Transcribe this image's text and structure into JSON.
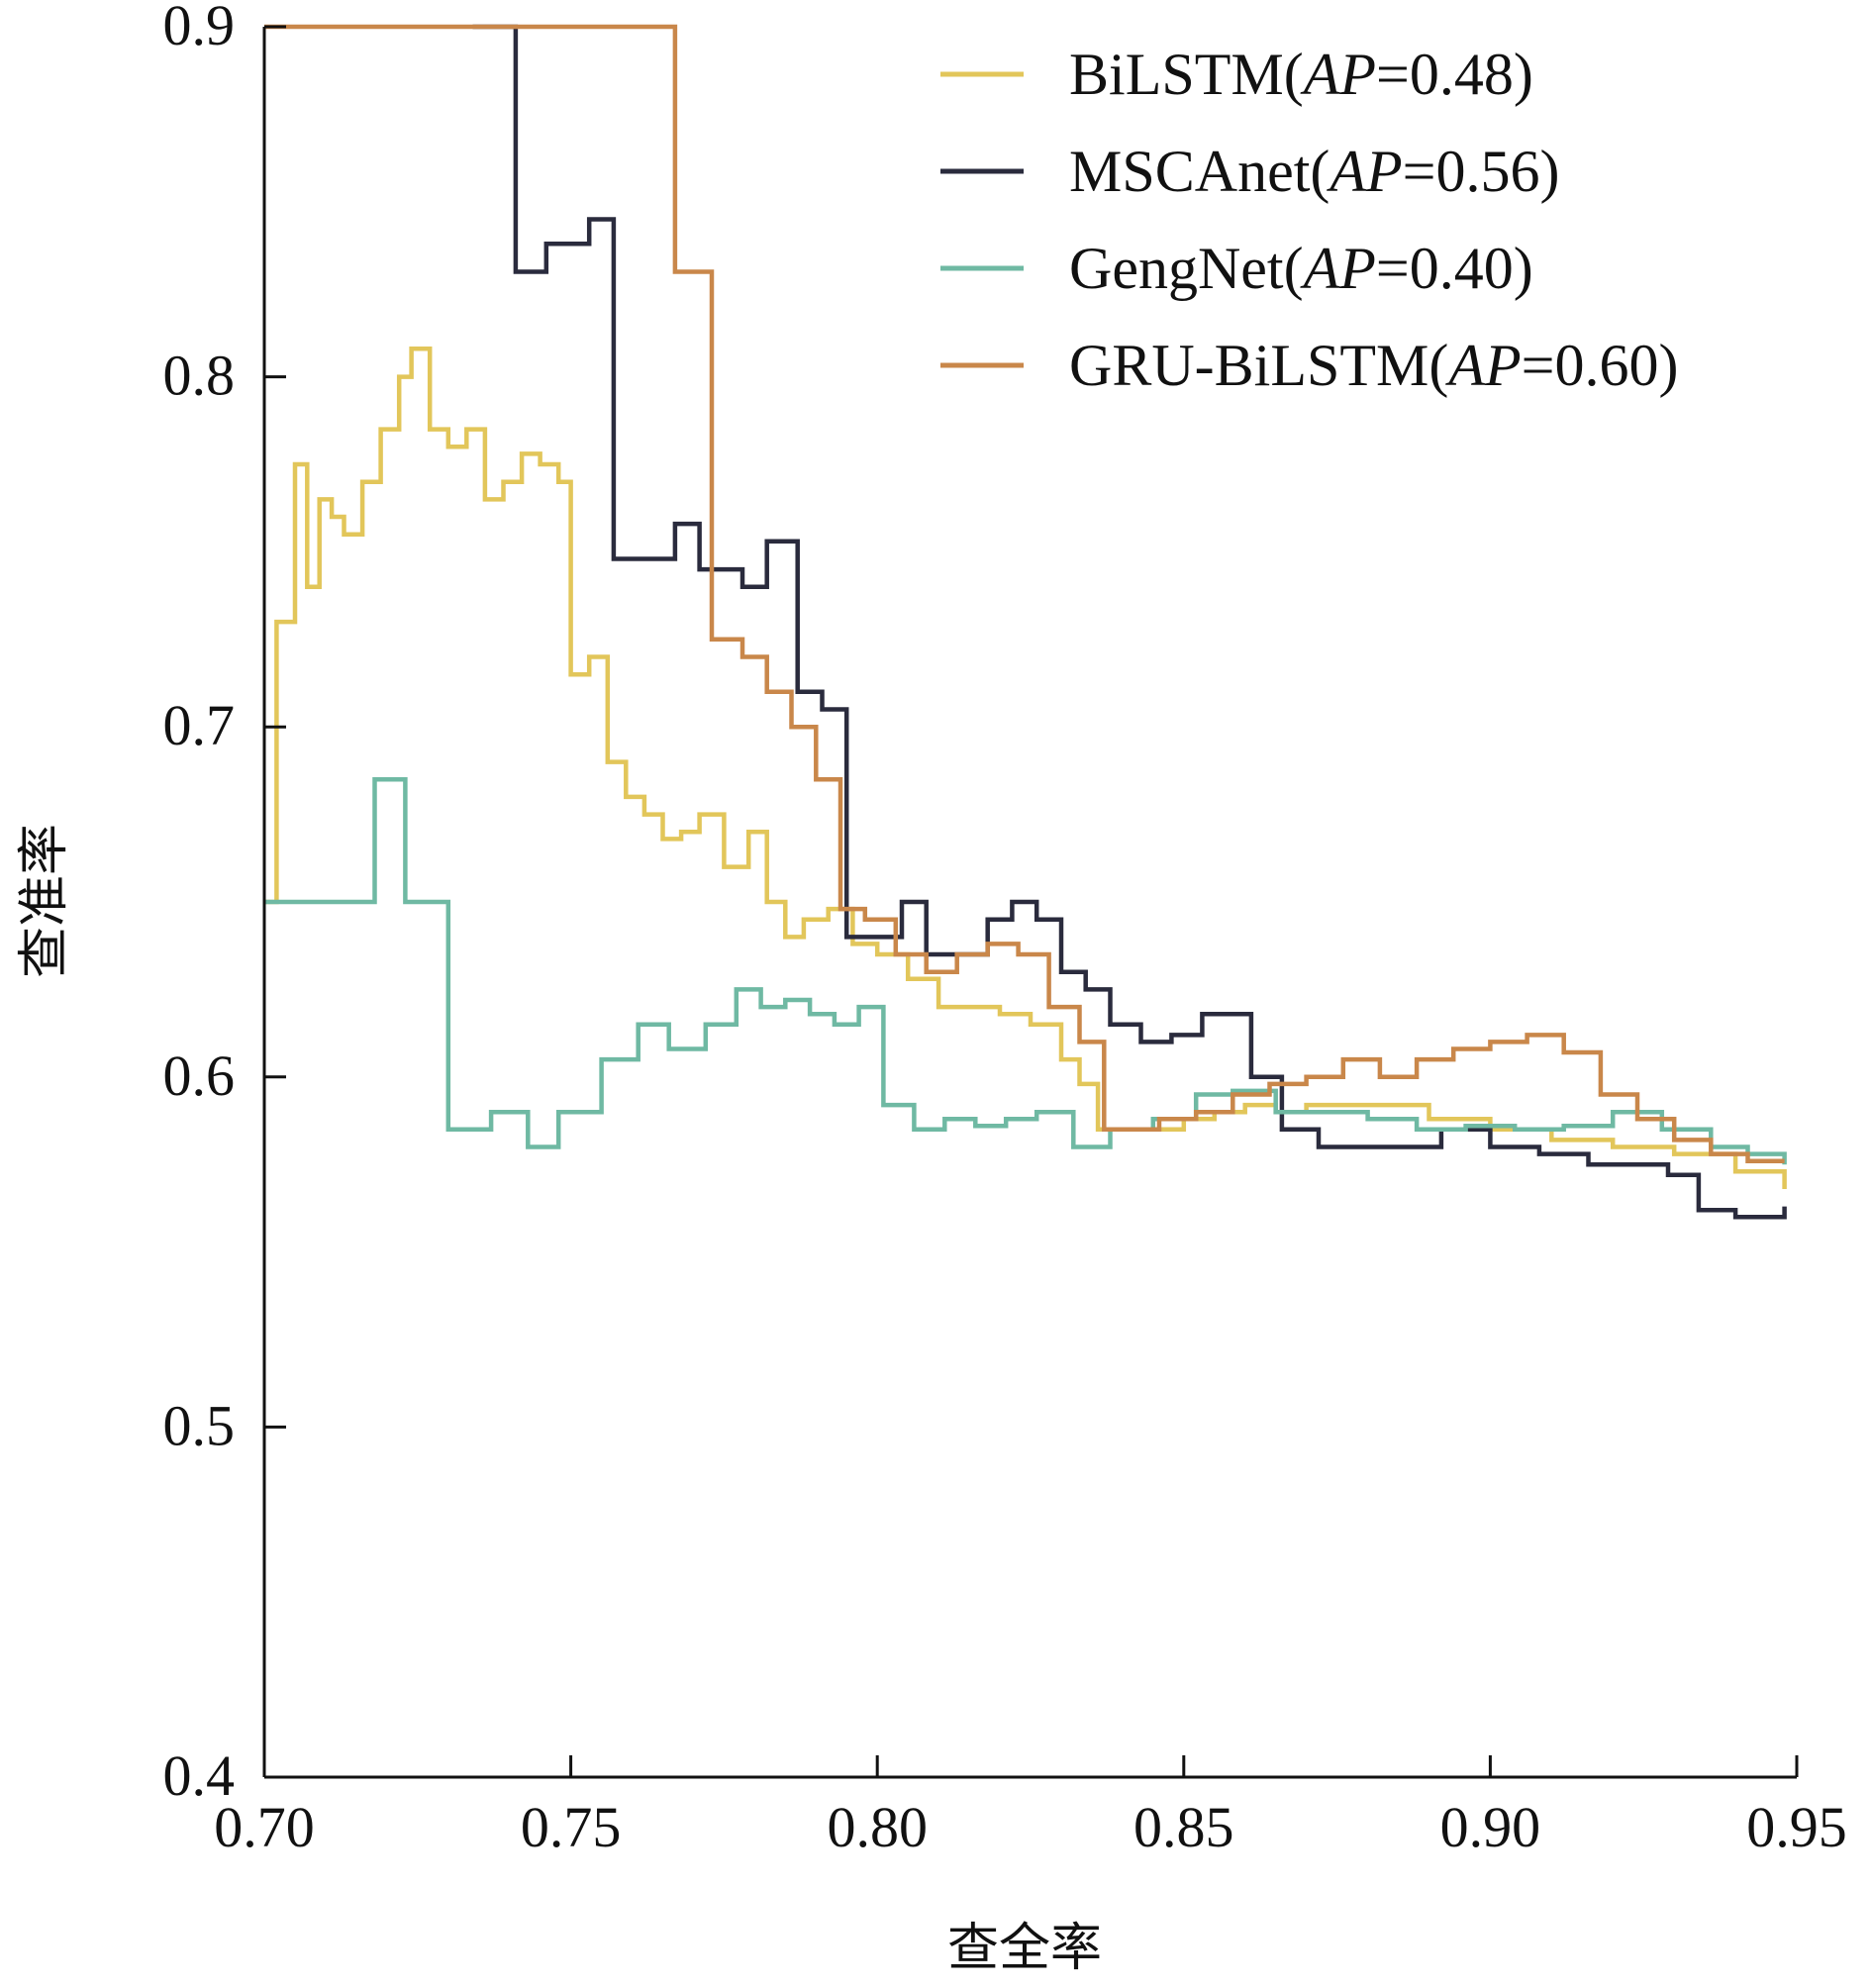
{
  "chart_data": {
    "type": "line",
    "xlabel": "查全率",
    "ylabel": "查准率",
    "xlim": [
      0.7,
      0.95
    ],
    "ylim": [
      0.4,
      0.9
    ],
    "xticks": [
      "0.70",
      "0.75",
      "0.80",
      "0.85",
      "0.90",
      "0.95"
    ],
    "yticks": [
      "0.4",
      "0.5",
      "0.6",
      "0.7",
      "0.8",
      "0.9"
    ],
    "legend_position": "top-right",
    "series": [
      {
        "name": "BiLSTM",
        "ap": "AP=0.48",
        "color": "#E2C65A",
        "x": [
          0.7,
          0.702,
          0.705,
          0.707,
          0.709,
          0.711,
          0.713,
          0.716,
          0.719,
          0.722,
          0.724,
          0.727,
          0.73,
          0.733,
          0.736,
          0.739,
          0.742,
          0.745,
          0.748,
          0.75,
          0.753,
          0.756,
          0.759,
          0.762,
          0.765,
          0.768,
          0.771,
          0.775,
          0.779,
          0.782,
          0.785,
          0.788,
          0.792,
          0.796,
          0.8,
          0.805,
          0.81,
          0.815,
          0.82,
          0.825,
          0.83,
          0.833,
          0.836,
          0.84,
          0.845,
          0.85,
          0.855,
          0.86,
          0.865,
          0.87,
          0.88,
          0.89,
          0.9,
          0.91,
          0.92,
          0.93,
          0.94,
          0.948
        ],
        "y": [
          0.65,
          0.73,
          0.775,
          0.74,
          0.765,
          0.76,
          0.755,
          0.77,
          0.785,
          0.8,
          0.808,
          0.785,
          0.78,
          0.785,
          0.765,
          0.77,
          0.778,
          0.775,
          0.77,
          0.715,
          0.72,
          0.69,
          0.68,
          0.675,
          0.668,
          0.67,
          0.675,
          0.66,
          0.67,
          0.65,
          0.64,
          0.645,
          0.648,
          0.638,
          0.635,
          0.628,
          0.62,
          0.62,
          0.618,
          0.615,
          0.605,
          0.598,
          0.585,
          0.585,
          0.585,
          0.588,
          0.59,
          0.592,
          0.59,
          0.592,
          0.592,
          0.588,
          0.585,
          0.582,
          0.58,
          0.578,
          0.573,
          0.568
        ]
      },
      {
        "name": "MSCAnet",
        "ap": "AP=0.56",
        "color": "#2A2B3D",
        "x": [
          0.734,
          0.741,
          0.746,
          0.753,
          0.757,
          0.761,
          0.767,
          0.771,
          0.778,
          0.782,
          0.787,
          0.791,
          0.795,
          0.8,
          0.804,
          0.808,
          0.813,
          0.818,
          0.822,
          0.826,
          0.83,
          0.834,
          0.838,
          0.843,
          0.848,
          0.853,
          0.857,
          0.861,
          0.866,
          0.872,
          0.878,
          0.885,
          0.892,
          0.9,
          0.908,
          0.916,
          0.924,
          0.929,
          0.934,
          0.94,
          0.948
        ],
        "y": [
          0.9,
          0.83,
          0.838,
          0.845,
          0.748,
          0.748,
          0.758,
          0.745,
          0.74,
          0.753,
          0.71,
          0.705,
          0.64,
          0.64,
          0.65,
          0.635,
          0.635,
          0.645,
          0.65,
          0.645,
          0.63,
          0.625,
          0.615,
          0.61,
          0.612,
          0.618,
          0.618,
          0.6,
          0.585,
          0.58,
          0.58,
          0.58,
          0.585,
          0.58,
          0.578,
          0.575,
          0.575,
          0.572,
          0.562,
          0.56,
          0.563
        ]
      },
      {
        "name": "GengNet",
        "ap": "AP=0.40",
        "color": "#6FB9A3",
        "x": [
          0.7,
          0.705,
          0.71,
          0.715,
          0.718,
          0.723,
          0.73,
          0.737,
          0.743,
          0.748,
          0.755,
          0.761,
          0.766,
          0.772,
          0.777,
          0.781,
          0.785,
          0.789,
          0.793,
          0.797,
          0.801,
          0.806,
          0.811,
          0.816,
          0.821,
          0.826,
          0.832,
          0.838,
          0.845,
          0.852,
          0.858,
          0.865,
          0.872,
          0.88,
          0.888,
          0.896,
          0.904,
          0.912,
          0.92,
          0.928,
          0.936,
          0.942,
          0.948
        ],
        "y": [
          0.65,
          0.65,
          0.65,
          0.65,
          0.685,
          0.65,
          0.585,
          0.59,
          0.58,
          0.59,
          0.605,
          0.615,
          0.608,
          0.615,
          0.625,
          0.62,
          0.622,
          0.618,
          0.615,
          0.62,
          0.592,
          0.585,
          0.588,
          0.586,
          0.588,
          0.59,
          0.58,
          0.585,
          0.588,
          0.595,
          0.596,
          0.59,
          0.59,
          0.588,
          0.585,
          0.586,
          0.585,
          0.586,
          0.59,
          0.585,
          0.58,
          0.578,
          0.575
        ]
      },
      {
        "name": "GRU-BiLSTM",
        "ap": "AP=0.60",
        "color": "#C9874A",
        "x": [
          0.7,
          0.767,
          0.773,
          0.778,
          0.782,
          0.786,
          0.79,
          0.794,
          0.798,
          0.803,
          0.808,
          0.813,
          0.818,
          0.823,
          0.828,
          0.833,
          0.837,
          0.841,
          0.846,
          0.852,
          0.858,
          0.864,
          0.87,
          0.876,
          0.882,
          0.888,
          0.894,
          0.9,
          0.906,
          0.912,
          0.918,
          0.924,
          0.93,
          0.936,
          0.942,
          0.948
        ],
        "y": [
          0.9,
          0.83,
          0.725,
          0.72,
          0.71,
          0.7,
          0.685,
          0.648,
          0.645,
          0.635,
          0.63,
          0.635,
          0.638,
          0.635,
          0.62,
          0.61,
          0.585,
          0.585,
          0.588,
          0.59,
          0.595,
          0.598,
          0.6,
          0.605,
          0.6,
          0.605,
          0.608,
          0.61,
          0.612,
          0.607,
          0.595,
          0.588,
          0.582,
          0.578,
          0.576,
          0.576
        ]
      }
    ]
  }
}
